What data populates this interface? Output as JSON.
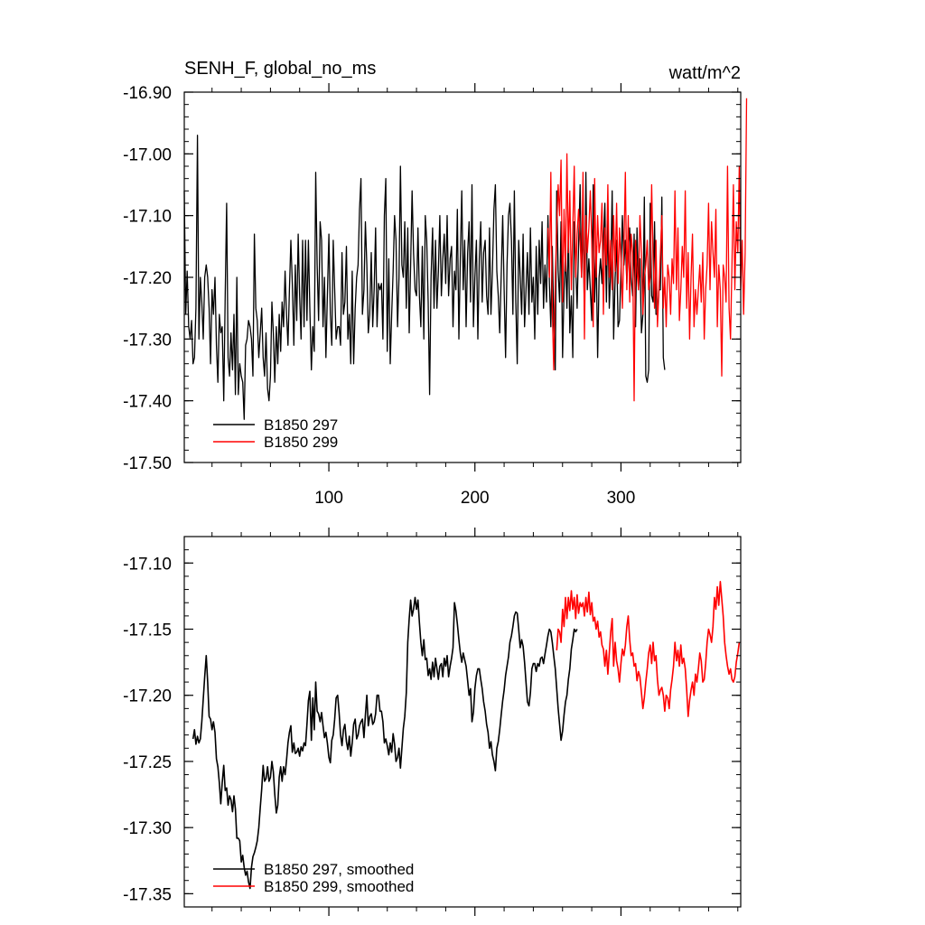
{
  "header": {
    "left_title": "SENH_F, global_no_ms",
    "right_title": "watt/m^2"
  },
  "colors": {
    "series1": "#000000",
    "series2": "#ff0000"
  },
  "chart_data": [
    {
      "type": "line",
      "title": "SENH_F, global_no_ms",
      "units": "watt/m^2",
      "xlim": [
        1,
        382
      ],
      "ylim": [
        -17.5,
        -16.9
      ],
      "xticks": [
        100,
        200,
        300
      ],
      "xtick_labels": [
        "100",
        "200",
        "300"
      ],
      "yticks": [
        -17.5,
        -17.4,
        -17.3,
        -17.2,
        -17.1,
        -17.0,
        -16.9
      ],
      "ytick_labels": [
        "-17.50",
        "-17.40",
        "-17.30",
        "-17.20",
        "-17.10",
        "-17.00",
        "-16.90"
      ],
      "legend_position": "bottom-left",
      "series": [
        {
          "name": "B1850 297",
          "color": "#000000",
          "x_start": 1,
          "values": [
            -17.06,
            -17.26,
            -17.19,
            -17.28,
            -17.3,
            -17.27,
            -17.34,
            -17.33,
            -17.25,
            -16.97,
            -17.3,
            -17.2,
            -17.24,
            -17.3,
            -17.2,
            -17.18,
            -17.2,
            -17.25,
            -17.34,
            -17.22,
            -17.26,
            -17.2,
            -17.31,
            -17.37,
            -17.26,
            -17.29,
            -17.28,
            -17.4,
            -17.23,
            -17.08,
            -17.33,
            -17.36,
            -17.29,
            -17.35,
            -17.26,
            -17.39,
            -17.2,
            -17.39,
            -17.34,
            -17.36,
            -17.37,
            -17.43,
            -17.31,
            -17.3,
            -17.27,
            -17.28,
            -17.3,
            -17.36,
            -17.13,
            -17.25,
            -17.27,
            -17.33,
            -17.29,
            -17.25,
            -17.33,
            -17.36,
            -17.29,
            -17.38,
            -17.4,
            -17.36,
            -17.24,
            -17.29,
            -17.37,
            -17.28,
            -17.34,
            -17.26,
            -17.32,
            -17.24,
            -17.28,
            -17.19,
            -17.26,
            -17.31,
            -17.22,
            -17.14,
            -17.21,
            -17.31,
            -17.18,
            -17.27,
            -17.13,
            -17.23,
            -17.3,
            -17.14,
            -17.28,
            -17.14,
            -17.27,
            -17.14,
            -17.25,
            -17.35,
            -17.28,
            -17.32,
            -17.03,
            -17.18,
            -17.27,
            -17.11,
            -17.14,
            -17.28,
            -17.2,
            -17.33,
            -17.23,
            -17.13,
            -17.26,
            -17.31,
            -17.14,
            -17.22,
            -17.3,
            -17.28,
            -17.28,
            -17.31,
            -17.16,
            -17.26,
            -17.24,
            -17.15,
            -17.3,
            -17.26,
            -17.34,
            -17.19,
            -17.34,
            -17.25,
            -17.2,
            -17.18,
            -17.09,
            -17.04,
            -17.26,
            -17.22,
            -17.11,
            -17.18,
            -17.29,
            -17.26,
            -17.16,
            -17.28,
            -17.22,
            -17.12,
            -17.28,
            -17.21,
            -17.22,
            -17.21,
            -17.3,
            -17.1,
            -17.04,
            -17.32,
            -17.17,
            -17.34,
            -17.26,
            -17.19,
            -17.1,
            -17.14,
            -17.28,
            -17.2,
            -17.02,
            -17.18,
            -17.2,
            -17.11,
            -17.25,
            -17.12,
            -17.29,
            -17.18,
            -17.06,
            -17.16,
            -17.22,
            -17.23,
            -17.12,
            -17.23,
            -17.28,
            -17.15,
            -17.3,
            -17.1,
            -17.14,
            -17.24,
            -17.39,
            -17.2,
            -17.12,
            -17.25,
            -17.14,
            -17.25,
            -17.19,
            -17.1,
            -17.23,
            -17.17,
            -17.13,
            -17.21,
            -17.1,
            -17.23,
            -17.17,
            -17.15,
            -17.28,
            -17.19,
            -17.22,
            -17.09,
            -17.3,
            -17.17,
            -17.06,
            -17.22,
            -17.14,
            -17.28,
            -17.16,
            -17.11,
            -17.24,
            -17.05,
            -17.28,
            -17.2,
            -17.14,
            -17.3,
            -17.17,
            -17.11,
            -17.24,
            -17.16,
            -17.14,
            -17.23,
            -17.26,
            -17.12,
            -17.26,
            -17.19,
            -17.09,
            -17.05,
            -17.19,
            -17.23,
            -17.29,
            -17.2,
            -17.1,
            -17.22,
            -17.33,
            -17.18,
            -17.1,
            -17.08,
            -17.14,
            -17.26,
            -17.06,
            -17.24,
            -17.34,
            -17.14,
            -17.2,
            -17.26,
            -17.13,
            -17.28,
            -17.22,
            -17.16,
            -17.26,
            -17.12,
            -17.24,
            -17.2,
            -17.3,
            -17.15,
            -17.26,
            -17.14,
            -17.21,
            -17.11,
            -17.25,
            -17.18,
            -17.24,
            -17.1,
            -17.21,
            -17.28,
            -17.15,
            -17.27,
            -17.35,
            -17.06,
            -17.19,
            -17.24,
            -17.11,
            -17.33,
            -17.22,
            -17.16,
            -17.25,
            -17.12,
            -17.29,
            -17.23,
            -17.33,
            -17.11,
            -17.18,
            -17.25,
            -17.15,
            -17.05,
            -17.2,
            -17.11,
            -17.26,
            -17.03,
            -17.22,
            -17.17,
            -17.22,
            -17.27,
            -17.05,
            -17.24,
            -17.15,
            -17.33,
            -17.2,
            -17.17,
            -17.21,
            -17.14,
            -17.08,
            -17.24,
            -17.1,
            -17.25,
            -17.19,
            -17.06,
            -17.3,
            -17.2,
            -17.14,
            -17.28,
            -17.27,
            -17.19,
            -17.1,
            -17.18,
            -17.14,
            -17.21,
            -17.15,
            -17.12,
            -17.2,
            -17.23,
            -17.13,
            -17.28,
            -17.12,
            -17.22,
            -17.17,
            -17.29,
            -17.26,
            -17.07,
            -17.36,
            -17.37,
            -17.35,
            -17.08,
            -17.23,
            -17.24,
            -17.11,
            -17.26,
            -17.26,
            -17.22,
            -17.22,
            -17.07,
            -17.33,
            -17.35
          ]
        },
        {
          "name": "B1850 299",
          "color": "#ff0000",
          "x_start": 250,
          "values": [
            -17.12,
            -17.2,
            -17.03,
            -17.25,
            -17.35,
            -17.2,
            -17.12,
            -17.05,
            -17.1,
            -17.01,
            -17.24,
            -17.09,
            -17.19,
            -17.0,
            -17.16,
            -17.06,
            -17.22,
            -17.12,
            -17.02,
            -17.2,
            -17.13,
            -17.09,
            -17.14,
            -17.2,
            -17.03,
            -17.3,
            -17.1,
            -17.16,
            -17.12,
            -17.06,
            -17.14,
            -17.28,
            -17.04,
            -17.2,
            -17.1,
            -17.16,
            -17.14,
            -17.08,
            -17.26,
            -17.12,
            -17.18,
            -17.05,
            -17.2,
            -17.14,
            -17.22,
            -17.1,
            -17.19,
            -17.08,
            -17.21,
            -17.12,
            -17.17,
            -17.25,
            -17.15,
            -17.03,
            -17.22,
            -17.1,
            -17.24,
            -17.13,
            -17.16,
            -17.4,
            -17.14,
            -17.19,
            -17.22,
            -17.1,
            -17.16,
            -17.26,
            -17.2,
            -17.18,
            -17.14,
            -17.22,
            -17.2,
            -17.05,
            -17.17,
            -17.25,
            -17.14,
            -17.28,
            -17.22,
            -17.16,
            -17.1,
            -17.25,
            -17.2,
            -17.28,
            -17.18,
            -17.2,
            -17.26,
            -17.17,
            -17.21,
            -17.06,
            -17.22,
            -17.12,
            -17.27,
            -17.22,
            -17.15,
            -17.2,
            -17.06,
            -17.25,
            -17.16,
            -17.3,
            -17.2,
            -17.13,
            -17.28,
            -17.22,
            -17.26,
            -17.22,
            -17.18,
            -17.24,
            -17.16,
            -17.3,
            -17.22,
            -17.18,
            -17.08,
            -17.22,
            -17.11,
            -17.16,
            -17.2,
            -17.09,
            -17.28,
            -17.18,
            -17.22,
            -17.36,
            -17.18,
            -17.2,
            -17.24,
            -17.02,
            -17.25,
            -17.3,
            -17.18,
            -17.05,
            -17.22,
            -17.11,
            -17.16,
            -17.02,
            -17.22,
            -17.14,
            -17.26,
            -17.16,
            -16.91
          ]
        }
      ]
    },
    {
      "type": "line",
      "title": "",
      "xlim": [
        1,
        382
      ],
      "ylim": [
        -17.36,
        -17.08
      ],
      "xticks": [
        100,
        200,
        300
      ],
      "yticks": [
        -17.35,
        -17.3,
        -17.25,
        -17.2,
        -17.15,
        -17.1
      ],
      "ytick_labels": [
        "-17.35",
        "-17.30",
        "-17.25",
        "-17.20",
        "-17.15",
        "-17.10"
      ],
      "legend_position": "bottom-left",
      "series": [
        {
          "name": "B1850 297, smoothed",
          "color": "#000000",
          "x_start": 7,
          "values": [
            -17.233,
            -17.226,
            -17.237,
            -17.231,
            -17.236,
            -17.233,
            -17.22,
            -17.203,
            -17.186,
            -17.17,
            -17.19,
            -17.216,
            -17.218,
            -17.226,
            -17.22,
            -17.228,
            -17.248,
            -17.254,
            -17.266,
            -17.282,
            -17.266,
            -17.253,
            -17.272,
            -17.27,
            -17.283,
            -17.276,
            -17.279,
            -17.288,
            -17.276,
            -17.286,
            -17.308,
            -17.308,
            -17.31,
            -17.326,
            -17.321,
            -17.33,
            -17.336,
            -17.333,
            -17.341,
            -17.346,
            -17.33,
            -17.322,
            -17.319,
            -17.315,
            -17.31,
            -17.3,
            -17.285,
            -17.271,
            -17.253,
            -17.265,
            -17.263,
            -17.254,
            -17.265,
            -17.262,
            -17.25,
            -17.258,
            -17.275,
            -17.289,
            -17.283,
            -17.262,
            -17.254,
            -17.265,
            -17.254,
            -17.26,
            -17.249,
            -17.236,
            -17.228,
            -17.223,
            -17.243,
            -17.236,
            -17.244,
            -17.243,
            -17.24,
            -17.246,
            -17.239,
            -17.242,
            -17.236,
            -17.238,
            -17.222,
            -17.204,
            -17.197,
            -17.234,
            -17.202,
            -17.226,
            -17.19,
            -17.212,
            -17.214,
            -17.22,
            -17.213,
            -17.223,
            -17.232,
            -17.228,
            -17.236,
            -17.247,
            -17.251,
            -17.234,
            -17.23,
            -17.218,
            -17.202,
            -17.2,
            -17.213,
            -17.23,
            -17.238,
            -17.226,
            -17.222,
            -17.235,
            -17.241,
            -17.231,
            -17.246,
            -17.236,
            -17.222,
            -17.218,
            -17.233,
            -17.23,
            -17.223,
            -17.22,
            -17.218,
            -17.232,
            -17.215,
            -17.2,
            -17.223,
            -17.216,
            -17.214,
            -17.222,
            -17.22,
            -17.214,
            -17.2,
            -17.2,
            -17.212,
            -17.212,
            -17.22,
            -17.236,
            -17.233,
            -17.238,
            -17.245,
            -17.236,
            -17.243,
            -17.229,
            -17.237,
            -17.25,
            -17.247,
            -17.24,
            -17.255,
            -17.24,
            -17.225,
            -17.216,
            -17.198,
            -17.16,
            -17.142,
            -17.128,
            -17.14,
            -17.135,
            -17.126,
            -17.135,
            -17.128,
            -17.145,
            -17.16,
            -17.17,
            -17.158,
            -17.173,
            -17.172,
            -17.185,
            -17.18,
            -17.188,
            -17.175,
            -17.186,
            -17.172,
            -17.18,
            -17.188,
            -17.178,
            -17.176,
            -17.186,
            -17.172,
            -17.178,
            -17.17,
            -17.186,
            -17.178,
            -17.172,
            -17.164,
            -17.13,
            -17.136,
            -17.146,
            -17.158,
            -17.168,
            -17.175,
            -17.168,
            -17.173,
            -17.178,
            -17.189,
            -17.2,
            -17.195,
            -17.22,
            -17.213,
            -17.195,
            -17.185,
            -17.18,
            -17.18,
            -17.188,
            -17.195,
            -17.205,
            -17.212,
            -17.222,
            -17.228,
            -17.24,
            -17.235,
            -17.245,
            -17.25,
            -17.257,
            -17.24,
            -17.235,
            -17.226,
            -17.215,
            -17.204,
            -17.196,
            -17.185,
            -17.178,
            -17.171,
            -17.16,
            -17.155,
            -17.148,
            -17.14,
            -17.137,
            -17.138,
            -17.15,
            -17.164,
            -17.158,
            -17.163,
            -17.175,
            -17.19,
            -17.205,
            -17.208,
            -17.198,
            -17.18,
            -17.176,
            -17.176,
            -17.182,
            -17.176,
            -17.178,
            -17.172,
            -17.171,
            -17.176,
            -17.169,
            -17.162,
            -17.155,
            -17.15,
            -17.152,
            -17.16,
            -17.17,
            -17.18,
            -17.195,
            -17.21,
            -17.222,
            -17.234,
            -17.227,
            -17.215,
            -17.205,
            -17.2,
            -17.188,
            -17.18,
            -17.165,
            -17.158,
            -17.15,
            -17.152,
            -17.15
          ]
        },
        {
          "name": "B1850 299, smoothed",
          "color": "#ff0000",
          "x_start": 256,
          "values": [
            -17.166,
            -17.15,
            -17.152,
            -17.16,
            -17.135,
            -17.148,
            -17.126,
            -17.142,
            -17.126,
            -17.136,
            -17.121,
            -17.135,
            -17.126,
            -17.142,
            -17.124,
            -17.138,
            -17.13,
            -17.133,
            -17.13,
            -17.14,
            -17.126,
            -17.137,
            -17.122,
            -17.139,
            -17.13,
            -17.144,
            -17.141,
            -17.15,
            -17.144,
            -17.156,
            -17.152,
            -17.162,
            -17.165,
            -17.178,
            -17.166,
            -17.184,
            -17.168,
            -17.152,
            -17.142,
            -17.178,
            -17.16,
            -17.174,
            -17.18,
            -17.19,
            -17.176,
            -17.165,
            -17.17,
            -17.162,
            -17.148,
            -17.14,
            -17.158,
            -17.17,
            -17.168,
            -17.178,
            -17.176,
            -17.189,
            -17.182,
            -17.186,
            -17.198,
            -17.21,
            -17.202,
            -17.19,
            -17.18,
            -17.168,
            -17.162,
            -17.176,
            -17.16,
            -17.174,
            -17.17,
            -17.188,
            -17.2,
            -17.196,
            -17.194,
            -17.2,
            -17.212,
            -17.2,
            -17.202,
            -17.21,
            -17.196,
            -17.188,
            -17.178,
            -17.16,
            -17.174,
            -17.166,
            -17.178,
            -17.162,
            -17.176,
            -17.172,
            -17.18,
            -17.196,
            -17.216,
            -17.204,
            -17.196,
            -17.19,
            -17.2,
            -17.184,
            -17.19,
            -17.18,
            -17.168,
            -17.174,
            -17.19,
            -17.188,
            -17.176,
            -17.16,
            -17.15,
            -17.154,
            -17.16,
            -17.148,
            -17.126,
            -17.135,
            -17.118,
            -17.132,
            -17.114,
            -17.127,
            -17.14,
            -17.16,
            -17.17,
            -17.178,
            -17.184,
            -17.18,
            -17.188,
            -17.19,
            -17.186,
            -17.175,
            -17.168,
            -17.16
          ]
        }
      ]
    }
  ]
}
